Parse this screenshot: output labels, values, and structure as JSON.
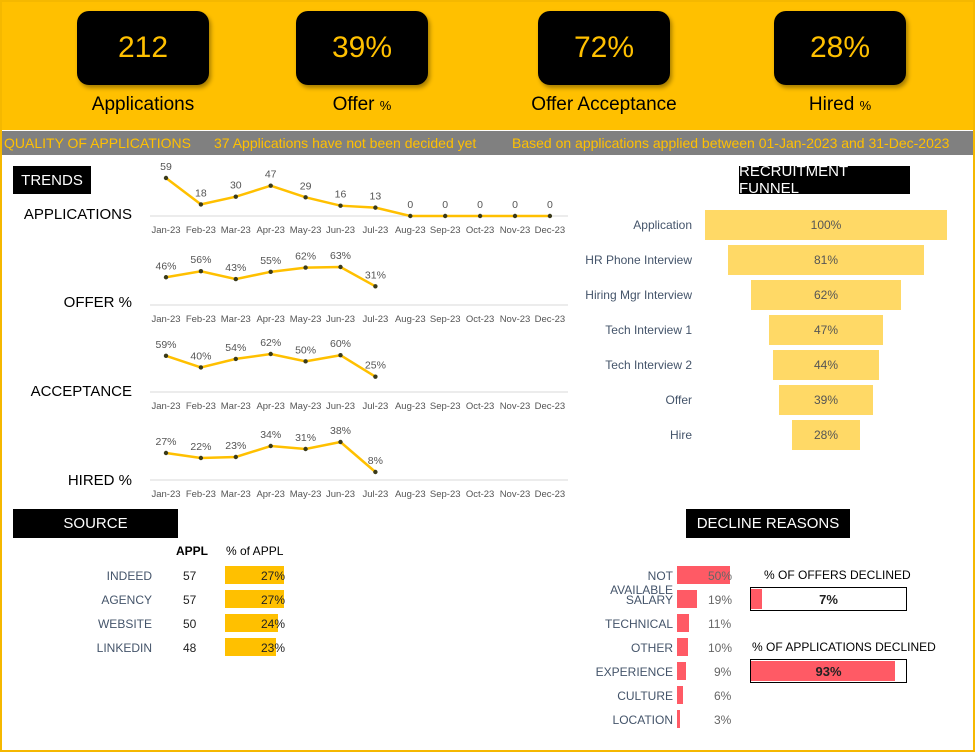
{
  "kpis": [
    {
      "value": "212",
      "label": "Applications",
      "suffix": ""
    },
    {
      "value": "39%",
      "label": "Offer",
      "suffix": "%"
    },
    {
      "value": "72%",
      "label": "Offer Acceptance",
      "suffix": ""
    },
    {
      "value": "28%",
      "label": "Hired",
      "suffix": "%"
    }
  ],
  "quality": {
    "title": "QUALITY OF APPLICATIONS",
    "pending": "37 Applications have not been decided yet",
    "range": "Based on applications applied between 01-Jan-2023 and 31-Dec-2023"
  },
  "trends": {
    "title": "TRENDS",
    "months": [
      "Jan-23",
      "Feb-23",
      "Mar-23",
      "Apr-23",
      "May-23",
      "Jun-23",
      "Jul-23",
      "Aug-23",
      "Sep-23",
      "Oct-23",
      "Nov-23",
      "Dec-23"
    ]
  },
  "chart_data": [
    {
      "type": "line",
      "title": "APPLICATIONS",
      "x": [
        "Jan-23",
        "Feb-23",
        "Mar-23",
        "Apr-23",
        "May-23",
        "Jun-23",
        "Jul-23",
        "Aug-23",
        "Sep-23",
        "Oct-23",
        "Nov-23",
        "Dec-23"
      ],
      "values": [
        59,
        18,
        30,
        47,
        29,
        16,
        13,
        0,
        0,
        0,
        0,
        0
      ],
      "labels": [
        "59",
        "18",
        "30",
        "47",
        "29",
        "16",
        "13",
        "0",
        "0",
        "0",
        "0",
        "0"
      ],
      "ylim": [
        0,
        59
      ]
    },
    {
      "type": "line",
      "title": "OFFER %",
      "x": [
        "Jan-23",
        "Feb-23",
        "Mar-23",
        "Apr-23",
        "May-23",
        "Jun-23",
        "Jul-23",
        "Aug-23",
        "Sep-23",
        "Oct-23",
        "Nov-23",
        "Dec-23"
      ],
      "values": [
        46,
        56,
        43,
        55,
        62,
        63,
        31
      ],
      "labels": [
        "46%",
        "56%",
        "43%",
        "55%",
        "62%",
        "63%",
        "31%"
      ],
      "ylim": [
        0,
        63
      ]
    },
    {
      "type": "line",
      "title": "ACCEPTANCE",
      "x": [
        "Jan-23",
        "Feb-23",
        "Mar-23",
        "Apr-23",
        "May-23",
        "Jun-23",
        "Jul-23",
        "Aug-23",
        "Sep-23",
        "Oct-23",
        "Nov-23",
        "Dec-23"
      ],
      "values": [
        59,
        40,
        54,
        62,
        50,
        60,
        25
      ],
      "labels": [
        "59%",
        "40%",
        "54%",
        "62%",
        "50%",
        "60%",
        "25%"
      ],
      "ylim": [
        0,
        62
      ]
    },
    {
      "type": "line",
      "title": "HIRED %",
      "x": [
        "Jan-23",
        "Feb-23",
        "Mar-23",
        "Apr-23",
        "May-23",
        "Jun-23",
        "Jul-23",
        "Aug-23",
        "Sep-23",
        "Oct-23",
        "Nov-23",
        "Dec-23"
      ],
      "values": [
        27,
        22,
        23,
        34,
        31,
        38,
        8
      ],
      "labels": [
        "27%",
        "22%",
        "23%",
        "34%",
        "31%",
        "38%",
        "8%"
      ],
      "ylim": [
        0,
        38
      ]
    }
  ],
  "funnel": {
    "title": "RECRUITMENT FUNNEL",
    "stages": [
      {
        "label": "Application",
        "value": 100,
        "text": "100%"
      },
      {
        "label": "HR Phone Interview",
        "value": 81,
        "text": "81%"
      },
      {
        "label": "Hiring Mgr Interview",
        "value": 62,
        "text": "62%"
      },
      {
        "label": "Tech Interview 1",
        "value": 47,
        "text": "47%"
      },
      {
        "label": "Tech Interview 2",
        "value": 44,
        "text": "44%"
      },
      {
        "label": "Offer",
        "value": 39,
        "text": "39%"
      },
      {
        "label": "Hire",
        "value": 28,
        "text": "28%"
      }
    ]
  },
  "source": {
    "title": "SOURCE",
    "col_appl": "APPL",
    "col_pct": "% of APPL",
    "rows": [
      {
        "label": "INDEED",
        "appl": "57",
        "pct": 27,
        "pct_text": "27%"
      },
      {
        "label": "AGENCY",
        "appl": "57",
        "pct": 27,
        "pct_text": "27%"
      },
      {
        "label": "WEBSITE",
        "appl": "50",
        "pct": 24,
        "pct_text": "24%"
      },
      {
        "label": "LINKEDIN",
        "appl": "48",
        "pct": 23,
        "pct_text": "23%"
      }
    ]
  },
  "decline": {
    "title": "DECLINE REASONS",
    "rows": [
      {
        "label": "NOT AVAILABLE",
        "pct": 50,
        "text": "50%"
      },
      {
        "label": "SALARY",
        "pct": 19,
        "text": "19%"
      },
      {
        "label": "TECHNICAL",
        "pct": 11,
        "text": "11%"
      },
      {
        "label": "OTHER",
        "pct": 10,
        "text": "10%"
      },
      {
        "label": "EXPERIENCE",
        "pct": 9,
        "text": "9%"
      },
      {
        "label": "CULTURE",
        "pct": 6,
        "text": "6%"
      },
      {
        "label": "LOCATION",
        "pct": 3,
        "text": "3%"
      }
    ],
    "offers_declined_title": "% OF OFFERS DECLINED",
    "offers_declined_value": "7%",
    "offers_declined_pct": 7,
    "apps_declined_title": "% OF APPLICATIONS DECLINED",
    "apps_declined_value": "93%",
    "apps_declined_pct": 93
  },
  "colors": {
    "accent": "#ffc000",
    "funnel": "#ffd966",
    "decline": "#ff5a65",
    "grey": "#808080"
  }
}
